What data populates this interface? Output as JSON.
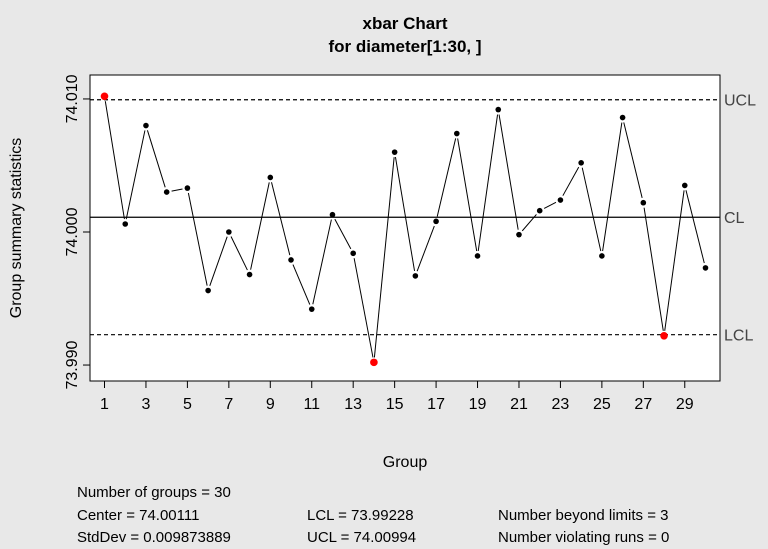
{
  "chart_data": {
    "type": "line",
    "title": "xbar Chart",
    "subtitle": "for diameter[1:30, ]",
    "xlabel": "Group",
    "ylabel": "Group summary statistics",
    "x": [
      1,
      2,
      3,
      4,
      5,
      6,
      7,
      8,
      9,
      10,
      11,
      12,
      13,
      14,
      15,
      16,
      17,
      18,
      19,
      20,
      21,
      22,
      23,
      24,
      25,
      26,
      27,
      28,
      29,
      30
    ],
    "values": [
      74.0102,
      74.0006,
      74.008,
      74.003,
      74.0033,
      73.9956,
      74.0,
      73.9968,
      74.0041,
      73.9979,
      73.9942,
      74.0013,
      73.9984,
      73.9902,
      74.006,
      73.9967,
      74.0008,
      74.0074,
      73.9982,
      74.0092,
      73.9998,
      74.0016,
      74.0024,
      74.0052,
      73.9982,
      74.0086,
      74.0022,
      73.9922,
      74.0035,
      73.9973
    ],
    "violations": [
      1,
      14,
      28
    ],
    "center": 74.00111,
    "lcl": 73.99228,
    "ucl": 74.00994,
    "xticks": [
      "1",
      "3",
      "5",
      "7",
      "9",
      "11",
      "13",
      "15",
      "17",
      "19",
      "21",
      "23",
      "25",
      "27",
      "29"
    ],
    "yticks": [
      "73.990",
      "74.000",
      "74.010"
    ],
    "xlim": [
      0.3,
      30.7
    ],
    "ylim": [
      73.9888,
      74.0118
    ],
    "line_labels": {
      "ucl": "UCL",
      "cl": "CL",
      "lcl": "LCL"
    },
    "colors": {
      "point": "#000000",
      "violation": "#ff0000",
      "background": "#e8e8e8",
      "plot_bg": "#ffffff"
    }
  },
  "summary": {
    "groups": "Number of groups = 30",
    "center": "Center = 74.00111",
    "stddev": "StdDev = 0.009873889",
    "lcl": "LCL = 73.99228",
    "ucl": "UCL = 74.00994",
    "beyond": "Number beyond limits = 3",
    "runs": "Number violating runs = 0"
  }
}
